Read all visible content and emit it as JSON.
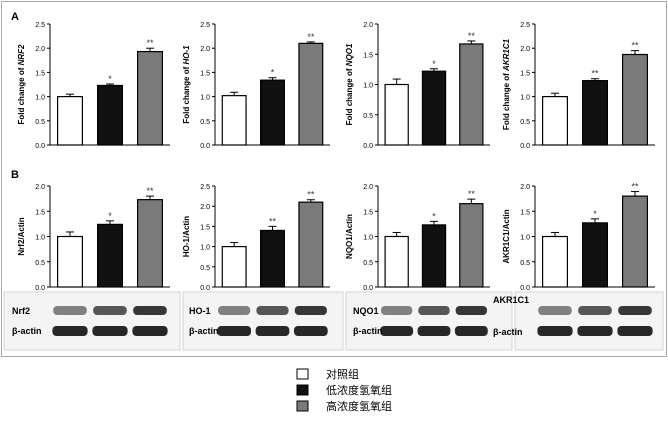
{
  "panel_labels": [
    "A",
    "B"
  ],
  "legend": {
    "entries": [
      {
        "label": "对照组",
        "color": "#ffffff"
      },
      {
        "label": "低浓度氢氧组",
        "color": "#111111"
      },
      {
        "label": "高浓度氢氧组",
        "color": "#7a7a7a"
      }
    ]
  },
  "blot_labels": {
    "row1": [
      "Nrf2",
      "HO-1",
      "NQO1",
      "AKR1C1"
    ],
    "row2": [
      "β-actin",
      "β-actin",
      "β-actin",
      "β-actin"
    ]
  },
  "chart_data": [
    {
      "type": "bar",
      "panel": "A",
      "ylabel_prefix": "Fold change of ",
      "ylabel_gene": "NRF2",
      "categories": [
        "对照组",
        "低浓度氢氧组",
        "高浓度氢氧组"
      ],
      "values": [
        1.0,
        1.23,
        1.93
      ],
      "errors": [
        0.05,
        0.03,
        0.07
      ],
      "significance": [
        "",
        "*",
        "**"
      ],
      "ylim": [
        0,
        2.5
      ],
      "yticks": [
        "0.0",
        "0.5",
        "1.0",
        "1.5",
        "2.0",
        "2.5"
      ],
      "ytick_values": [
        0,
        0.5,
        1.0,
        1.5,
        2.0,
        2.5
      ]
    },
    {
      "type": "bar",
      "panel": "A",
      "ylabel_prefix": "Fold change of ",
      "ylabel_gene": "HO-1",
      "categories": [
        "对照组",
        "低浓度氢氧组",
        "高浓度氢氧组"
      ],
      "values": [
        1.02,
        1.34,
        2.1
      ],
      "errors": [
        0.07,
        0.05,
        0.03
      ],
      "significance": [
        "",
        "*",
        "**"
      ],
      "ylim": [
        0,
        2.5
      ],
      "yticks": [
        "0.0",
        "0.5",
        "1.0",
        "1.5",
        "2.0",
        "2.5"
      ],
      "ytick_values": [
        0,
        0.5,
        1.0,
        1.5,
        2.0,
        2.5
      ]
    },
    {
      "type": "bar",
      "panel": "A",
      "ylabel_prefix": "Fold change of ",
      "ylabel_gene": "NQO1",
      "categories": [
        "对照组",
        "低浓度氢氧组",
        "高浓度氢氧组"
      ],
      "values": [
        1.0,
        1.22,
        1.67
      ],
      "errors": [
        0.09,
        0.04,
        0.05
      ],
      "significance": [
        "",
        "*",
        "**"
      ],
      "ylim": [
        0,
        2.0
      ],
      "yticks": [
        "0.0",
        "0.5",
        "1.0",
        "1.5",
        "2.0"
      ],
      "ytick_values": [
        0,
        0.5,
        1.0,
        1.5,
        2.0
      ]
    },
    {
      "type": "bar",
      "panel": "A",
      "ylabel_prefix": "Fold change of ",
      "ylabel_gene": "AKR1C1",
      "categories": [
        "对照组",
        "低浓度氢氧组",
        "高浓度氢氧组"
      ],
      "values": [
        1.0,
        1.33,
        1.87
      ],
      "errors": [
        0.07,
        0.04,
        0.08
      ],
      "significance": [
        "",
        "**",
        "**"
      ],
      "ylim": [
        0,
        2.5
      ],
      "yticks": [
        "0.0",
        "0.5",
        "1.0",
        "1.5",
        "2.0",
        "2.5"
      ],
      "ytick_values": [
        0,
        0.5,
        1.0,
        1.5,
        2.0,
        2.5
      ]
    },
    {
      "type": "bar",
      "panel": "B",
      "ylabel_prefix": "",
      "ylabel_gene": "Nrf2/Actin",
      "categories": [
        "对照组",
        "低浓度氢氧组",
        "高浓度氢氧组"
      ],
      "values": [
        1.0,
        1.24,
        1.73
      ],
      "errors": [
        0.09,
        0.07,
        0.07
      ],
      "significance": [
        "",
        "*",
        "**"
      ],
      "ylim": [
        0,
        2.0
      ],
      "yticks": [
        "0.0",
        "0.5",
        "1.0",
        "1.5",
        "2.0"
      ],
      "ytick_values": [
        0,
        0.5,
        1.0,
        1.5,
        2.0
      ]
    },
    {
      "type": "bar",
      "panel": "B",
      "ylabel_prefix": "",
      "ylabel_gene": "HO-1/Actin",
      "categories": [
        "对照组",
        "低浓度氢氧组",
        "高浓度氢氧组"
      ],
      "values": [
        1.0,
        1.4,
        2.1
      ],
      "errors": [
        0.1,
        0.1,
        0.06
      ],
      "significance": [
        "",
        "**",
        "**"
      ],
      "ylim": [
        0,
        2.5
      ],
      "yticks": [
        "0.0",
        "0.5",
        "1.0",
        "1.5",
        "2.0",
        "2.5"
      ],
      "ytick_values": [
        0,
        0.5,
        1.0,
        1.5,
        2.0,
        2.5
      ]
    },
    {
      "type": "bar",
      "panel": "B",
      "ylabel_prefix": "",
      "ylabel_gene": "NQO1/Actin",
      "categories": [
        "对照组",
        "低浓度氢氧组",
        "高浓度氢氧组"
      ],
      "values": [
        1.0,
        1.23,
        1.65
      ],
      "errors": [
        0.08,
        0.07,
        0.09
      ],
      "significance": [
        "",
        "*",
        "**"
      ],
      "ylim": [
        0,
        2.0
      ],
      "yticks": [
        "0.0",
        "0.5",
        "1.0",
        "1.5",
        "2.0"
      ],
      "ytick_values": [
        0,
        0.5,
        1.0,
        1.5,
        2.0
      ]
    },
    {
      "type": "bar",
      "panel": "B",
      "ylabel_prefix": "",
      "ylabel_gene": "AKR1C1/Actin",
      "categories": [
        "对照组",
        "低浓度氢氧组",
        "高浓度氢氧组"
      ],
      "values": [
        1.0,
        1.27,
        1.8
      ],
      "errors": [
        0.08,
        0.08,
        0.09
      ],
      "significance": [
        "",
        "*",
        "**"
      ],
      "ylim": [
        0,
        2.0
      ],
      "yticks": [
        "0.0",
        "0.5",
        "1.0",
        "1.5",
        "2.0"
      ],
      "ytick_values": [
        0,
        0.5,
        1.0,
        1.5,
        2.0
      ]
    }
  ]
}
